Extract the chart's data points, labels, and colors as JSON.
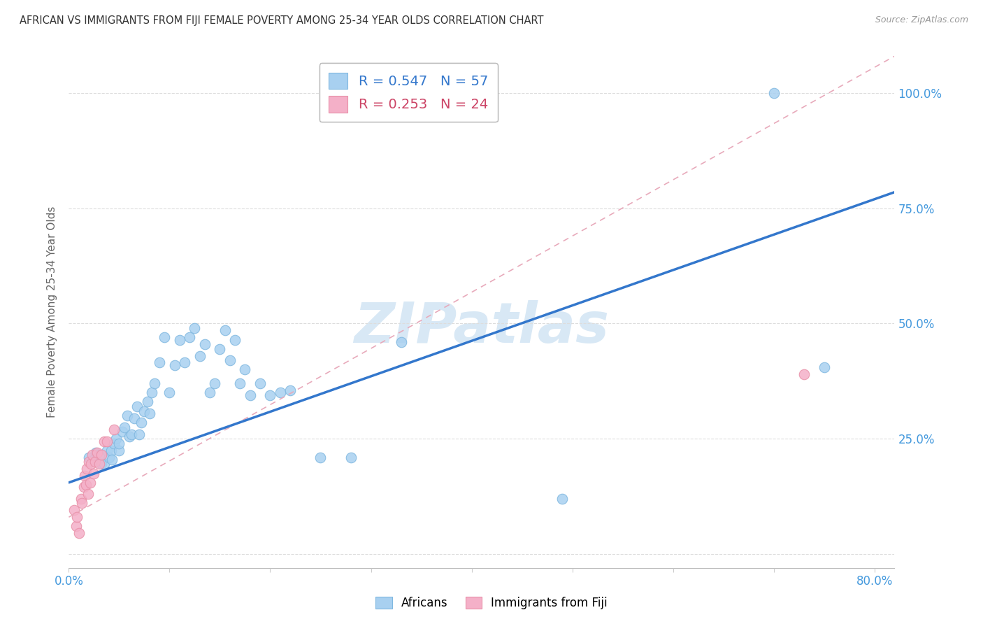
{
  "title": "AFRICAN VS IMMIGRANTS FROM FIJI FEMALE POVERTY AMONG 25-34 YEAR OLDS CORRELATION CHART",
  "source": "Source: ZipAtlas.com",
  "ylabel": "Female Poverty Among 25-34 Year Olds",
  "xlim": [
    0.0,
    0.82
  ],
  "ylim": [
    -0.03,
    1.08
  ],
  "ytick_positions": [
    0.0,
    0.25,
    0.5,
    0.75,
    1.0
  ],
  "ytick_labels_right": [
    "",
    "25.0%",
    "50.0%",
    "75.0%",
    "100.0%"
  ],
  "xtick_positions": [
    0.0,
    0.1,
    0.2,
    0.3,
    0.4,
    0.5,
    0.6,
    0.7,
    0.8
  ],
  "legend_african_R": "0.547",
  "legend_african_N": "57",
  "legend_fiji_R": "0.253",
  "legend_fiji_N": "24",
  "blue_scatter_color": "#A8D0F0",
  "pink_scatter_color": "#F4B0C8",
  "blue_edge_color": "#80B8E0",
  "pink_edge_color": "#E890A8",
  "trend_blue_color": "#3377CC",
  "trend_pink_color": "#E8AABB",
  "watermark_text": "ZIPatlas",
  "watermark_color": "#D8E8F5",
  "african_x": [
    0.02,
    0.025,
    0.027,
    0.03,
    0.032,
    0.035,
    0.038,
    0.04,
    0.042,
    0.043,
    0.045,
    0.047,
    0.05,
    0.05,
    0.053,
    0.055,
    0.058,
    0.06,
    0.062,
    0.065,
    0.068,
    0.07,
    0.072,
    0.075,
    0.078,
    0.08,
    0.082,
    0.085,
    0.09,
    0.095,
    0.1,
    0.105,
    0.11,
    0.115,
    0.12,
    0.125,
    0.13,
    0.135,
    0.14,
    0.145,
    0.15,
    0.155,
    0.16,
    0.165,
    0.17,
    0.175,
    0.18,
    0.19,
    0.2,
    0.21,
    0.22,
    0.25,
    0.28,
    0.33,
    0.49,
    0.7,
    0.75
  ],
  "african_y": [
    0.21,
    0.205,
    0.22,
    0.215,
    0.195,
    0.195,
    0.225,
    0.21,
    0.225,
    0.205,
    0.24,
    0.25,
    0.225,
    0.24,
    0.265,
    0.275,
    0.3,
    0.255,
    0.26,
    0.295,
    0.32,
    0.26,
    0.285,
    0.31,
    0.33,
    0.305,
    0.35,
    0.37,
    0.415,
    0.47,
    0.35,
    0.41,
    0.465,
    0.415,
    0.47,
    0.49,
    0.43,
    0.455,
    0.35,
    0.37,
    0.445,
    0.485,
    0.42,
    0.465,
    0.37,
    0.4,
    0.345,
    0.37,
    0.345,
    0.35,
    0.355,
    0.21,
    0.21,
    0.46,
    0.12,
    1.0,
    0.405
  ],
  "fiji_x": [
    0.005,
    0.007,
    0.008,
    0.01,
    0.012,
    0.013,
    0.015,
    0.016,
    0.017,
    0.018,
    0.019,
    0.02,
    0.021,
    0.022,
    0.023,
    0.025,
    0.026,
    0.028,
    0.03,
    0.032,
    0.035,
    0.038,
    0.045,
    0.73
  ],
  "fiji_y": [
    0.095,
    0.06,
    0.08,
    0.045,
    0.12,
    0.11,
    0.145,
    0.17,
    0.15,
    0.185,
    0.13,
    0.2,
    0.155,
    0.195,
    0.215,
    0.175,
    0.2,
    0.22,
    0.195,
    0.215,
    0.245,
    0.245,
    0.27,
    0.39
  ],
  "african_trend_x0": 0.0,
  "african_trend_y0": 0.155,
  "african_trend_x1": 0.82,
  "african_trend_y1": 0.785,
  "fiji_trend_x0": 0.0,
  "fiji_trend_y0": 0.08,
  "fiji_trend_x1": 0.82,
  "fiji_trend_y1": 1.08,
  "background_color": "#FFFFFF",
  "grid_color": "#DDDDDD",
  "axis_label_color": "#4499DD",
  "ylabel_color": "#666666"
}
